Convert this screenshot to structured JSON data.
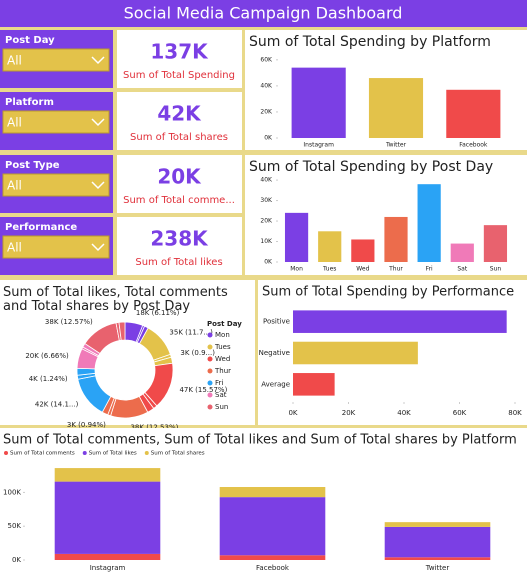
{
  "title": "Social Media Campaign Dashboard",
  "slicers": [
    {
      "label": "Post Day",
      "selection": "All"
    },
    {
      "label": "Platform",
      "selection": "All"
    },
    {
      "label": "Post Type",
      "selection": "All"
    },
    {
      "label": "Performance",
      "selection": "All"
    }
  ],
  "cards": [
    {
      "value": "137K",
      "label": "Sum of Total Spending"
    },
    {
      "value": "42K",
      "label": "Sum of Total shares"
    },
    {
      "value": "20K",
      "label": "Sum of Total comme..."
    },
    {
      "value": "238K",
      "label": "Sum of Total likes"
    }
  ],
  "chart_data": [
    {
      "type": "bar",
      "title": "Sum of Total Spending by Platform",
      "categories": [
        "Instagram",
        "Twitter",
        "Facebook"
      ],
      "values": [
        54000,
        46000,
        37000
      ],
      "colors": [
        "#7b3fe4",
        "#e3c24a",
        "#f04a4a"
      ],
      "ylim": [
        0,
        66000
      ],
      "yticks": [
        {
          "value": 0,
          "label": "0K"
        },
        {
          "value": 20000,
          "label": "20K"
        },
        {
          "value": 40000,
          "label": "40K"
        },
        {
          "value": 60000,
          "label": "60K"
        }
      ],
      "grid": false
    },
    {
      "type": "bar",
      "title": "Sum of Total Spending by Post Day",
      "categories": [
        "Mon",
        "Tues",
        "Wed",
        "Thur",
        "Fri",
        "Sat",
        "Sun"
      ],
      "values": [
        24000,
        15000,
        11000,
        22000,
        38000,
        9000,
        18000
      ],
      "colors": [
        "#7b3fe4",
        "#e3c24a",
        "#f04a4a",
        "#ec6c4c",
        "#2aa3f5",
        "#f07ab8",
        "#e8626e"
      ],
      "ylim": [
        0,
        42000
      ],
      "yticks": [
        {
          "value": 0,
          "label": "0K"
        },
        {
          "value": 10000,
          "label": "10K"
        },
        {
          "value": 20000,
          "label": "20K"
        },
        {
          "value": 30000,
          "label": "30K"
        },
        {
          "value": 40000,
          "label": "40K"
        }
      ],
      "grid": false
    },
    {
      "type": "donut",
      "title": "Sum of Total likes, Total comments and Total shares by Post Day",
      "legend_title": "Post Day",
      "series": [
        {
          "name": "Mon",
          "color": "#7b3fe4",
          "values": [
            18000,
            2000,
            4000
          ],
          "value_labels": [
            "18K (6.11%)",
            null,
            null
          ]
        },
        {
          "name": "Tues",
          "color": "#e3c24a",
          "values": [
            35000,
            3000,
            6000
          ],
          "value_labels": [
            "35K (11.7...)",
            "3K (0.9...)",
            null
          ]
        },
        {
          "name": "Wed",
          "color": "#f04a4a",
          "values": [
            47000,
            4000,
            7000
          ],
          "value_labels": [
            "47K (15.57%)",
            null,
            null
          ]
        },
        {
          "name": "Thur",
          "color": "#ec6c4c",
          "values": [
            38000,
            3000,
            6000
          ],
          "value_labels": [
            "38K (12.53%)",
            "3K (0.94%)",
            null
          ]
        },
        {
          "name": "Fri",
          "color": "#2aa3f5",
          "values": [
            42000,
            4000,
            7000
          ],
          "value_labels": [
            "42K (14.1...)",
            "4K (1.24%)",
            null
          ]
        },
        {
          "name": "Sat",
          "color": "#f07ab8",
          "values": [
            20000,
            2000,
            4000
          ],
          "value_labels": [
            "20K (6.66%)",
            null,
            null
          ]
        },
        {
          "name": "Sun",
          "color": "#e8626e",
          "values": [
            38000,
            3000,
            6000
          ],
          "value_labels": [
            "38K (12.57%)",
            null,
            null
          ]
        }
      ]
    },
    {
      "type": "hbar",
      "title": "Sum of Total Spending by Performance",
      "categories": [
        "Positive",
        "Negative",
        "Average"
      ],
      "values": [
        77000,
        45000,
        15000
      ],
      "colors": [
        "#7b3fe4",
        "#e3c24a",
        "#f04a4a"
      ],
      "xlim": [
        0,
        80000
      ],
      "xticks": [
        {
          "value": 0,
          "label": "0K"
        },
        {
          "value": 20000,
          "label": "20K"
        },
        {
          "value": 40000,
          "label": "40K"
        },
        {
          "value": 60000,
          "label": "60K"
        },
        {
          "value": 80000,
          "label": "80K"
        }
      ],
      "grid": false
    },
    {
      "type": "stacked_bar",
      "title": "Sum of Total comments, Sum of Total likes and Sum of Total shares by Platform",
      "categories": [
        "Instagram",
        "Facebook",
        "Twitter"
      ],
      "series": [
        {
          "name": "Sum of Total comments",
          "color": "#f04a4a",
          "values": [
            9000,
            7000,
            4000
          ]
        },
        {
          "name": "Sum of Total likes",
          "color": "#7b3fe4",
          "values": [
            107000,
            86000,
            45000
          ]
        },
        {
          "name": "Sum of Total shares",
          "color": "#e3c24a",
          "values": [
            20000,
            15000,
            7000
          ]
        }
      ],
      "ylim": [
        0,
        145000
      ],
      "yticks": [
        {
          "value": 0,
          "label": "0K"
        },
        {
          "value": 50000,
          "label": "50K"
        },
        {
          "value": 100000,
          "label": "100K"
        }
      ],
      "grid": false
    }
  ]
}
